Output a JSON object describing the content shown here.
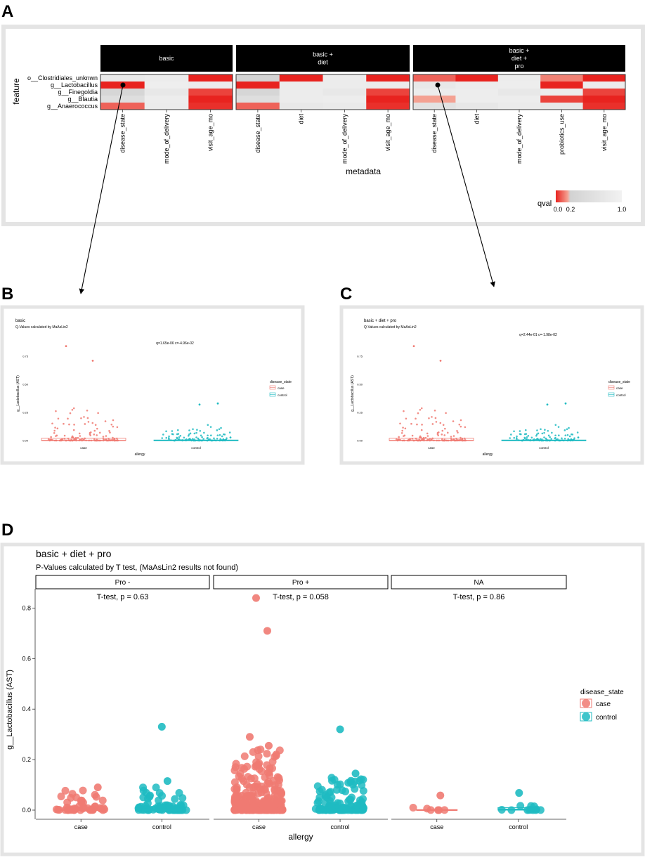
{
  "colors": {
    "case": "#f07a72",
    "control": "#1fbbc2",
    "strip": "#000000",
    "qval_low": "#e8231f",
    "qval_high": "#f2f2f2"
  },
  "panel_a": {
    "letter": "A",
    "y_title": "feature",
    "x_title": "metadata",
    "features": [
      "o__Clostridiales_unknwn",
      "g__Lactobacillus",
      "g__Finegoldia",
      "g__Blautia",
      "g__Anaerococcus"
    ],
    "facets": [
      {
        "strip": [
          "basic"
        ],
        "columns": [
          "disease_state",
          "mode_of_delivery",
          "visit_age_mo"
        ]
      },
      {
        "strip": [
          "basic +",
          "diet"
        ],
        "columns": [
          "disease_state",
          "diet",
          "mode_of_delivery",
          "visit_age_mo"
        ]
      },
      {
        "strip": [
          "basic +",
          "diet +",
          "pro"
        ],
        "columns": [
          "disease_state",
          "diet",
          "mode_of_delivery",
          "probiotics_use",
          "visit_age_mo"
        ]
      }
    ],
    "legend": {
      "title": "qval",
      "ticks": [
        "0.0",
        "0.2",
        "1.0"
      ]
    }
  },
  "panel_b": {
    "letter": "B",
    "title": "basic",
    "subtitle": "Q-Values calculated by MaAsLin2",
    "annotation": "q=1.65e-06 c=-4.96e-02",
    "ylabel": "g__Lactobacillus (AST)",
    "xlabel": "allergy",
    "categories": [
      "case",
      "control"
    ],
    "yticks": [
      "0.00",
      "0.25",
      "0.50",
      "0.75"
    ],
    "legend_title": "disease_state",
    "legend_items": [
      "case",
      "control"
    ]
  },
  "panel_c": {
    "letter": "C",
    "title": "basic + diet + pro",
    "subtitle": "Q-Values calculated by MaAsLin2",
    "annotation": "q=2.44e-01 c=-1.98e-02",
    "ylabel": "g__Lactobacillus (AST)",
    "xlabel": "allergy",
    "categories": [
      "case",
      "control"
    ],
    "yticks": [
      "0.00",
      "0.25",
      "0.50",
      "0.75"
    ],
    "legend_title": "disease_state",
    "legend_items": [
      "case",
      "control"
    ]
  },
  "panel_d": {
    "letter": "D",
    "title": "basic + diet + pro",
    "subtitle": "P-Values calculated by T test, (MaAsLin2 results not found)",
    "facets": [
      "Pro -",
      "Pro +",
      "NA"
    ],
    "pvalues": [
      "T-test, p = 0.63",
      "T-test, p = 0.058",
      "T-test, p = 0.86"
    ],
    "ylabel": "g__Lactobacillus (AST)",
    "xlabel": "allergy",
    "categories": [
      "case",
      "control"
    ],
    "yticks": [
      "0.0",
      "0.2",
      "0.4",
      "0.6",
      "0.8"
    ],
    "legend_title": "disease_state",
    "legend_items": [
      "case",
      "control"
    ]
  },
  "chart_data": [
    {
      "type": "heatmap",
      "title": "",
      "xlabel": "metadata",
      "ylabel": "feature",
      "rows": [
        "o__Clostridiales_unknwn",
        "g__Lactobacillus",
        "g__Finegoldia",
        "g__Blautia",
        "g__Anaerococcus"
      ],
      "facets": [
        {
          "name": "basic",
          "columns": [
            "disease_state",
            "mode_of_delivery",
            "visit_age_mo"
          ],
          "values": [
            [
              0.8,
              0.85,
              0.0
            ],
            [
              0.0,
              0.9,
              0.85
            ],
            [
              0.3,
              0.75,
              0.05
            ],
            [
              0.5,
              0.88,
              0.0
            ],
            [
              0.1,
              0.85,
              0.02
            ]
          ]
        },
        {
          "name": "basic + diet",
          "columns": [
            "disease_state",
            "diet",
            "mode_of_delivery",
            "visit_age_mo"
          ],
          "values": [
            [
              0.25,
              0.0,
              0.85,
              0.0
            ],
            [
              0.0,
              0.85,
              0.85,
              0.82
            ],
            [
              0.3,
              0.85,
              0.75,
              0.05
            ],
            [
              0.5,
              0.85,
              0.88,
              0.0
            ],
            [
              0.1,
              0.75,
              0.8,
              0.02
            ]
          ]
        },
        {
          "name": "basic + diet + pro",
          "columns": [
            "disease_state",
            "diet",
            "mode_of_delivery",
            "probiotics_use",
            "visit_age_mo"
          ],
          "values": [
            [
              0.1,
              0.0,
              0.85,
              0.15,
              0.0
            ],
            [
              0.75,
              0.85,
              0.88,
              0.0,
              0.85
            ],
            [
              0.85,
              0.88,
              0.75,
              0.85,
              0.05
            ],
            [
              0.2,
              0.88,
              0.88,
              0.05,
              0.0
            ],
            [
              0.6,
              0.72,
              0.82,
              0.75,
              0.02
            ]
          ]
        }
      ],
      "legend": {
        "title": "qval",
        "range": [
          0,
          1
        ],
        "ticks": [
          0.0,
          0.2,
          1.0
        ]
      }
    },
    {
      "type": "scatter",
      "title": "basic",
      "subtitle": "Q-Values calculated by MaAsLin2",
      "xlabel": "allergy",
      "ylabel": "g__Lactobacillus (AST)",
      "categories": [
        "case",
        "control"
      ],
      "ylim": [
        -0.02,
        0.9
      ],
      "boxes": [
        {
          "category": "case",
          "q1": 0.0,
          "median": 0.0,
          "q3": 0.02
        },
        {
          "category": "control",
          "q1": 0.0,
          "median": 0.0,
          "q3": 0.005
        }
      ],
      "outliers": [
        {
          "category": "case",
          "y": 0.84
        },
        {
          "category": "case",
          "y": 0.71
        },
        {
          "category": "control",
          "y": 0.33
        },
        {
          "category": "control",
          "y": 0.32
        }
      ],
      "jitter_max": {
        "case": 0.29,
        "control": 0.14
      }
    },
    {
      "type": "scatter",
      "title": "basic + diet + pro",
      "subtitle": "Q-Values calculated by MaAsLin2",
      "xlabel": "allergy",
      "ylabel": "g__Lactobacillus (AST)",
      "categories": [
        "case",
        "control"
      ],
      "ylim": [
        -0.02,
        0.9
      ],
      "boxes": [
        {
          "category": "case",
          "q1": 0.0,
          "median": 0.0,
          "q3": 0.02
        },
        {
          "category": "control",
          "q1": 0.0,
          "median": 0.0,
          "q3": 0.005
        }
      ],
      "outliers": [
        {
          "category": "case",
          "y": 0.84
        },
        {
          "category": "case",
          "y": 0.71
        },
        {
          "category": "control",
          "y": 0.33
        },
        {
          "category": "control",
          "y": 0.32
        }
      ],
      "jitter_max": {
        "case": 0.29,
        "control": 0.14
      }
    },
    {
      "type": "scatter",
      "title": "basic + diet + pro",
      "subtitle": "P-Values calculated by T test, (MaAsLin2 results not found)",
      "xlabel": "allergy",
      "ylabel": "g__Lactobacillus (AST)",
      "ylim": [
        -0.02,
        0.88
      ],
      "facets": [
        {
          "name": "Pro -",
          "pvalue": 0.63,
          "boxes": [
            {
              "category": "case",
              "q1": 0.0,
              "median": 0.0,
              "q3": 0.002
            },
            {
              "category": "control",
              "q1": 0.0,
              "median": 0.0,
              "q3": 0.004
            }
          ],
          "outliers": [
            {
              "category": "control",
              "y": 0.33
            },
            {
              "category": "control",
              "y": 0.115
            },
            {
              "category": "case",
              "y": 0.09
            }
          ]
        },
        {
          "name": "Pro +",
          "pvalue": 0.058,
          "boxes": [
            {
              "category": "case",
              "q1": 0.0,
              "median": 0.005,
              "q3": 0.03
            },
            {
              "category": "control",
              "q1": 0.0,
              "median": 0.003,
              "q3": 0.012
            }
          ],
          "outliers": [
            {
              "category": "case",
              "y": 0.84
            },
            {
              "category": "case",
              "y": 0.71
            },
            {
              "category": "case",
              "y": 0.29
            },
            {
              "category": "case",
              "y": 0.255
            },
            {
              "category": "control",
              "y": 0.32
            },
            {
              "category": "control",
              "y": 0.145
            }
          ]
        },
        {
          "name": "NA",
          "pvalue": 0.86,
          "boxes": [
            {
              "category": "case",
              "q1": 0.0,
              "median": 0.0,
              "q3": 0.002
            },
            {
              "category": "control",
              "q1": 0.0,
              "median": 0.003,
              "q3": 0.01
            }
          ],
          "outliers": [
            {
              "category": "case",
              "y": 0.058
            },
            {
              "category": "control",
              "y": 0.068
            }
          ]
        }
      ]
    }
  ]
}
